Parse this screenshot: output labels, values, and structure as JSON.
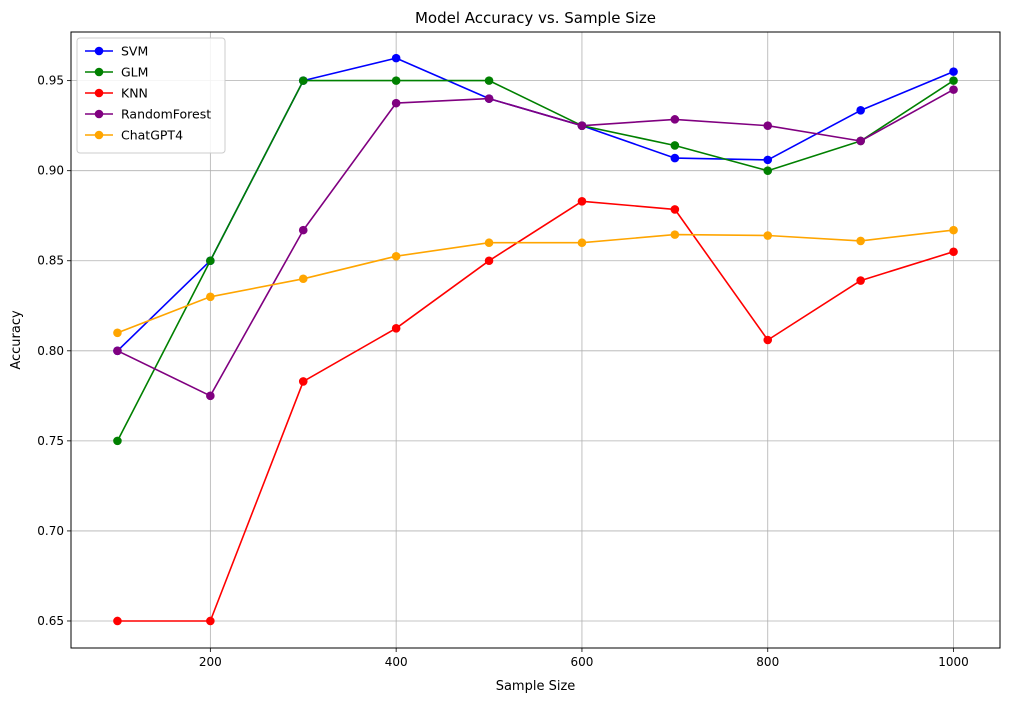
{
  "chart_data": {
    "type": "line",
    "title": "Model Accuracy vs. Sample Size",
    "xlabel": "Sample Size",
    "ylabel": "Accuracy",
    "x": [
      100,
      200,
      300,
      400,
      500,
      600,
      700,
      800,
      900,
      1000
    ],
    "xlim": [
      50,
      1050
    ],
    "ylim": [
      0.635,
      0.977
    ],
    "xticks": [
      200,
      400,
      600,
      800,
      1000
    ],
    "yticks": [
      0.65,
      0.7,
      0.75,
      0.8,
      0.85,
      0.9,
      0.95
    ],
    "xtick_labels": [
      "200",
      "400",
      "600",
      "800",
      "1000"
    ],
    "ytick_labels": [
      "0.65",
      "0.70",
      "0.75",
      "0.80",
      "0.85",
      "0.90",
      "0.95"
    ],
    "grid": true,
    "legend_position": "top-left",
    "series": [
      {
        "name": "SVM",
        "color": "#0000ff",
        "values": [
          0.8,
          0.85,
          0.95,
          0.9625,
          0.94,
          0.925,
          0.907,
          0.906,
          0.9335,
          0.955
        ]
      },
      {
        "name": "GLM",
        "color": "#008000",
        "values": [
          0.75,
          0.85,
          0.95,
          0.95,
          0.95,
          0.925,
          0.914,
          0.9,
          0.9165,
          0.95
        ]
      },
      {
        "name": "KNN",
        "color": "#ff0000",
        "values": [
          0.65,
          0.65,
          0.783,
          0.8125,
          0.85,
          0.883,
          0.8785,
          0.806,
          0.839,
          0.855
        ]
      },
      {
        "name": "RandomForest",
        "color": "#800080",
        "values": [
          0.8,
          0.775,
          0.867,
          0.9375,
          0.94,
          0.925,
          0.9285,
          0.925,
          0.9165,
          0.945
        ]
      },
      {
        "name": "ChatGPT4",
        "color": "#ffa500",
        "values": [
          0.81,
          0.83,
          0.84,
          0.8525,
          0.86,
          0.86,
          0.8645,
          0.864,
          0.861,
          0.867
        ]
      }
    ]
  }
}
